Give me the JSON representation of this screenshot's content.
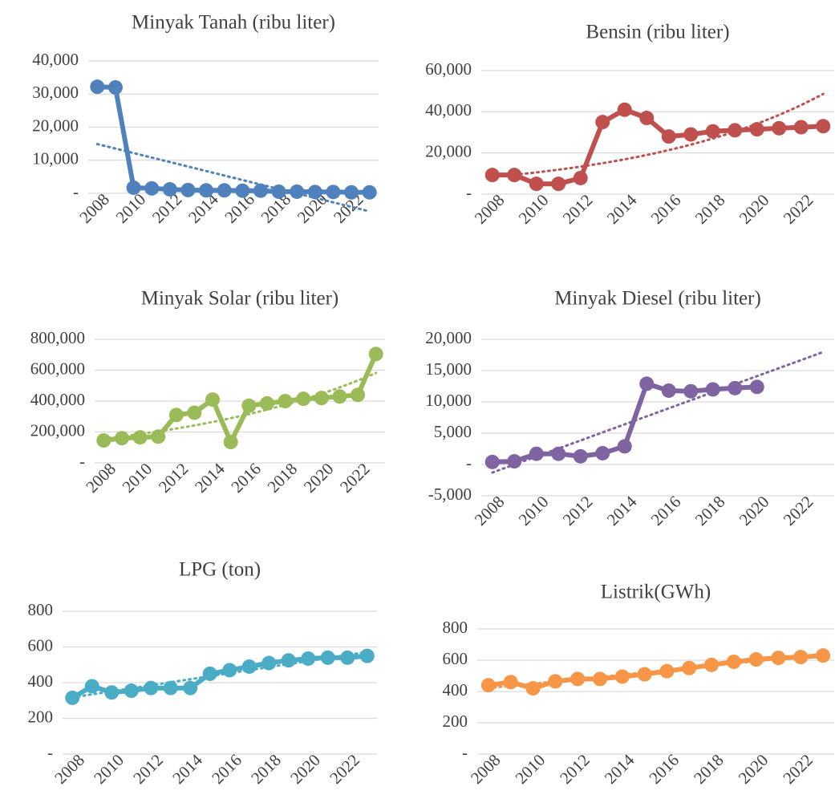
{
  "chart_data": [
    {
      "type": "line",
      "title": "Minyak Tanah (ribu liter)",
      "categories": [
        "2008",
        null,
        "2010",
        null,
        "2012",
        null,
        "2014",
        null,
        "2016",
        null,
        "2018",
        null,
        "2020",
        null,
        "2022",
        null
      ],
      "values": [
        32200,
        32000,
        1700,
        1500,
        1200,
        1000,
        900,
        900,
        800,
        800,
        500,
        500,
        400,
        400,
        300,
        300
      ],
      "color": "#4f81bd",
      "trendline": "linear",
      "grid": true,
      "ylim": [
        0,
        40000
      ],
      "yticks": [
        {
          "value": 0,
          "label": "-"
        },
        {
          "value": 10000,
          "label": "10,000"
        },
        {
          "value": 20000,
          "label": "20,000"
        },
        {
          "value": 30000,
          "label": "30,000"
        },
        {
          "value": 40000,
          "label": "40,000"
        }
      ]
    },
    {
      "type": "line",
      "title": "Bensin (ribu liter)",
      "categories": [
        "2008",
        null,
        "2010",
        null,
        "2012",
        null,
        "2014",
        null,
        "2016",
        null,
        "2018",
        null,
        "2020",
        null,
        "2022",
        null
      ],
      "values": [
        9300,
        9300,
        5000,
        5000,
        7800,
        35000,
        41000,
        37000,
        28000,
        29000,
        30500,
        31000,
        31500,
        32000,
        32500,
        33000
      ],
      "color": "#c0504d",
      "trendline": "exponential",
      "grid": true,
      "ylim": [
        0,
        60000
      ],
      "yticks": [
        {
          "value": 0,
          "label": "-"
        },
        {
          "value": 20000,
          "label": "20,000"
        },
        {
          "value": 40000,
          "label": "40,000"
        },
        {
          "value": 60000,
          "label": "60,000"
        }
      ]
    },
    {
      "type": "line",
      "title": "Minyak Solar (ribu liter)",
      "categories": [
        "2008",
        null,
        "2010",
        null,
        "2012",
        null,
        "2014",
        null,
        "2016",
        null,
        "2018",
        null,
        "2020",
        null,
        "2022",
        null
      ],
      "values": [
        145000,
        160000,
        165000,
        170000,
        310000,
        325000,
        410000,
        135000,
        370000,
        385000,
        400000,
        415000,
        420000,
        430000,
        440000,
        705000
      ],
      "color": "#9bbb59",
      "trendline": "exponential",
      "grid": true,
      "ylim": [
        0,
        800000
      ],
      "yticks": [
        {
          "value": 0,
          "label": "-"
        },
        {
          "value": 200000,
          "label": "200,000"
        },
        {
          "value": 400000,
          "label": "400,000"
        },
        {
          "value": 600000,
          "label": "600,000"
        },
        {
          "value": 800000,
          "label": "800,000"
        }
      ]
    },
    {
      "type": "line",
      "title": "Minyak Diesel (ribu liter)",
      "categories": [
        "2008",
        null,
        "2010",
        null,
        "2012",
        null,
        "2014",
        null,
        "2016",
        null,
        "2018",
        null,
        "2020",
        null,
        "2022",
        null
      ],
      "values": [
        400,
        500,
        1700,
        1700,
        1300,
        1800,
        2900,
        12900,
        11800,
        11700,
        12000,
        12200,
        12400,
        null,
        null,
        null
      ],
      "color": "#8064a2",
      "trendline": "linear",
      "grid": true,
      "ylim": [
        -5000,
        20000
      ],
      "yticks": [
        {
          "value": -5000,
          "label": "-5,000"
        },
        {
          "value": 0,
          "label": "-"
        },
        {
          "value": 5000,
          "label": "5,000"
        },
        {
          "value": 10000,
          "label": "10,000"
        },
        {
          "value": 15000,
          "label": "15,000"
        },
        {
          "value": 20000,
          "label": "20,000"
        }
      ]
    },
    {
      "type": "line",
      "title": "LPG (ton)",
      "categories": [
        "2008",
        null,
        "2010",
        null,
        "2012",
        null,
        "2014",
        null,
        "2016",
        null,
        "2018",
        null,
        "2020",
        null,
        "2022",
        null
      ],
      "values": [
        315,
        380,
        345,
        355,
        370,
        370,
        370,
        450,
        470,
        490,
        510,
        525,
        535,
        540,
        540,
        550
      ],
      "color": "#4bacc6",
      "trendline": "linear",
      "grid": true,
      "ylim": [
        0,
        800
      ],
      "yticks": [
        {
          "value": 0,
          "label": "-"
        },
        200,
        400,
        600,
        800
      ]
    },
    {
      "type": "line",
      "title": "Listrik(GWh)",
      "categories": [
        "2008",
        null,
        "2010",
        null,
        "2012",
        null,
        "2014",
        null,
        "2016",
        null,
        "2018",
        null,
        "2020",
        null,
        "2022",
        null
      ],
      "values": [
        440,
        460,
        420,
        465,
        480,
        480,
        495,
        510,
        530,
        550,
        570,
        590,
        605,
        615,
        620,
        630
      ],
      "color": "#f79646",
      "trendline": "linear",
      "grid": true,
      "ylim": [
        0,
        800
      ],
      "yticks": [
        {
          "value": 0,
          "label": "-"
        },
        200,
        400,
        600,
        800
      ]
    }
  ]
}
